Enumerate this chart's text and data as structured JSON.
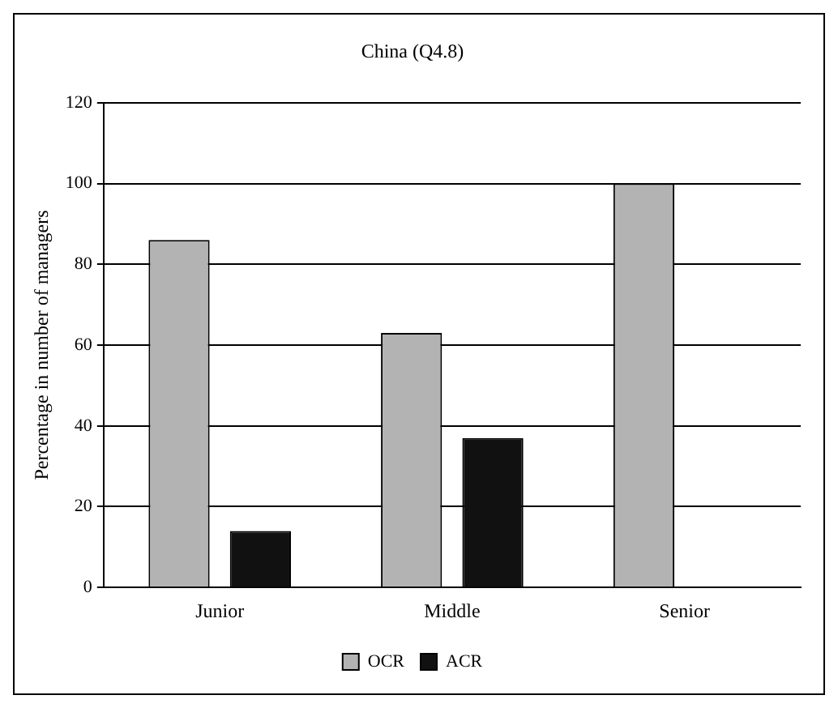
{
  "chart_data": {
    "type": "bar",
    "title": "China (Q4.8)",
    "ylabel": "Percentage in number of managers",
    "categories": [
      "Junior",
      "Middle",
      "Senior"
    ],
    "series": [
      {
        "name": "OCR",
        "color": "#b3b3b3",
        "values": [
          86,
          63,
          100
        ]
      },
      {
        "name": "ACR",
        "color": "#111111",
        "values": [
          14,
          37,
          0
        ]
      }
    ],
    "ylim": [
      0,
      120
    ],
    "yticks": [
      0,
      20,
      40,
      60,
      80,
      100,
      120
    ],
    "grid": "y",
    "legend": "bottom"
  }
}
